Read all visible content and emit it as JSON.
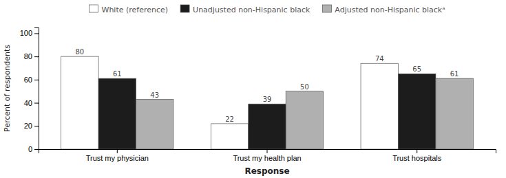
{
  "chart_data": {
    "type": "bar",
    "categories": [
      "Trust my physician",
      "Trust my health plan",
      "Trust hospitals"
    ],
    "series": [
      {
        "name": "White (reference)",
        "color": "#ffffff",
        "values": [
          80,
          22,
          74
        ]
      },
      {
        "name": "Unadjusted non-Hispanic black",
        "color": "#1c1c1c",
        "values": [
          61,
          39,
          65
        ]
      },
      {
        "name": "Adjusted non-Hispanic blackᵃ",
        "color": "#b0b0b0",
        "values": [
          43,
          50,
          61
        ]
      }
    ],
    "ylabel": "Percent of respondents",
    "xlabel": "Response",
    "ylim": [
      0,
      105
    ],
    "yticks": [
      0,
      20,
      40,
      60,
      80,
      100
    ],
    "grid": false,
    "legend": "top",
    "data_labels": true
  }
}
